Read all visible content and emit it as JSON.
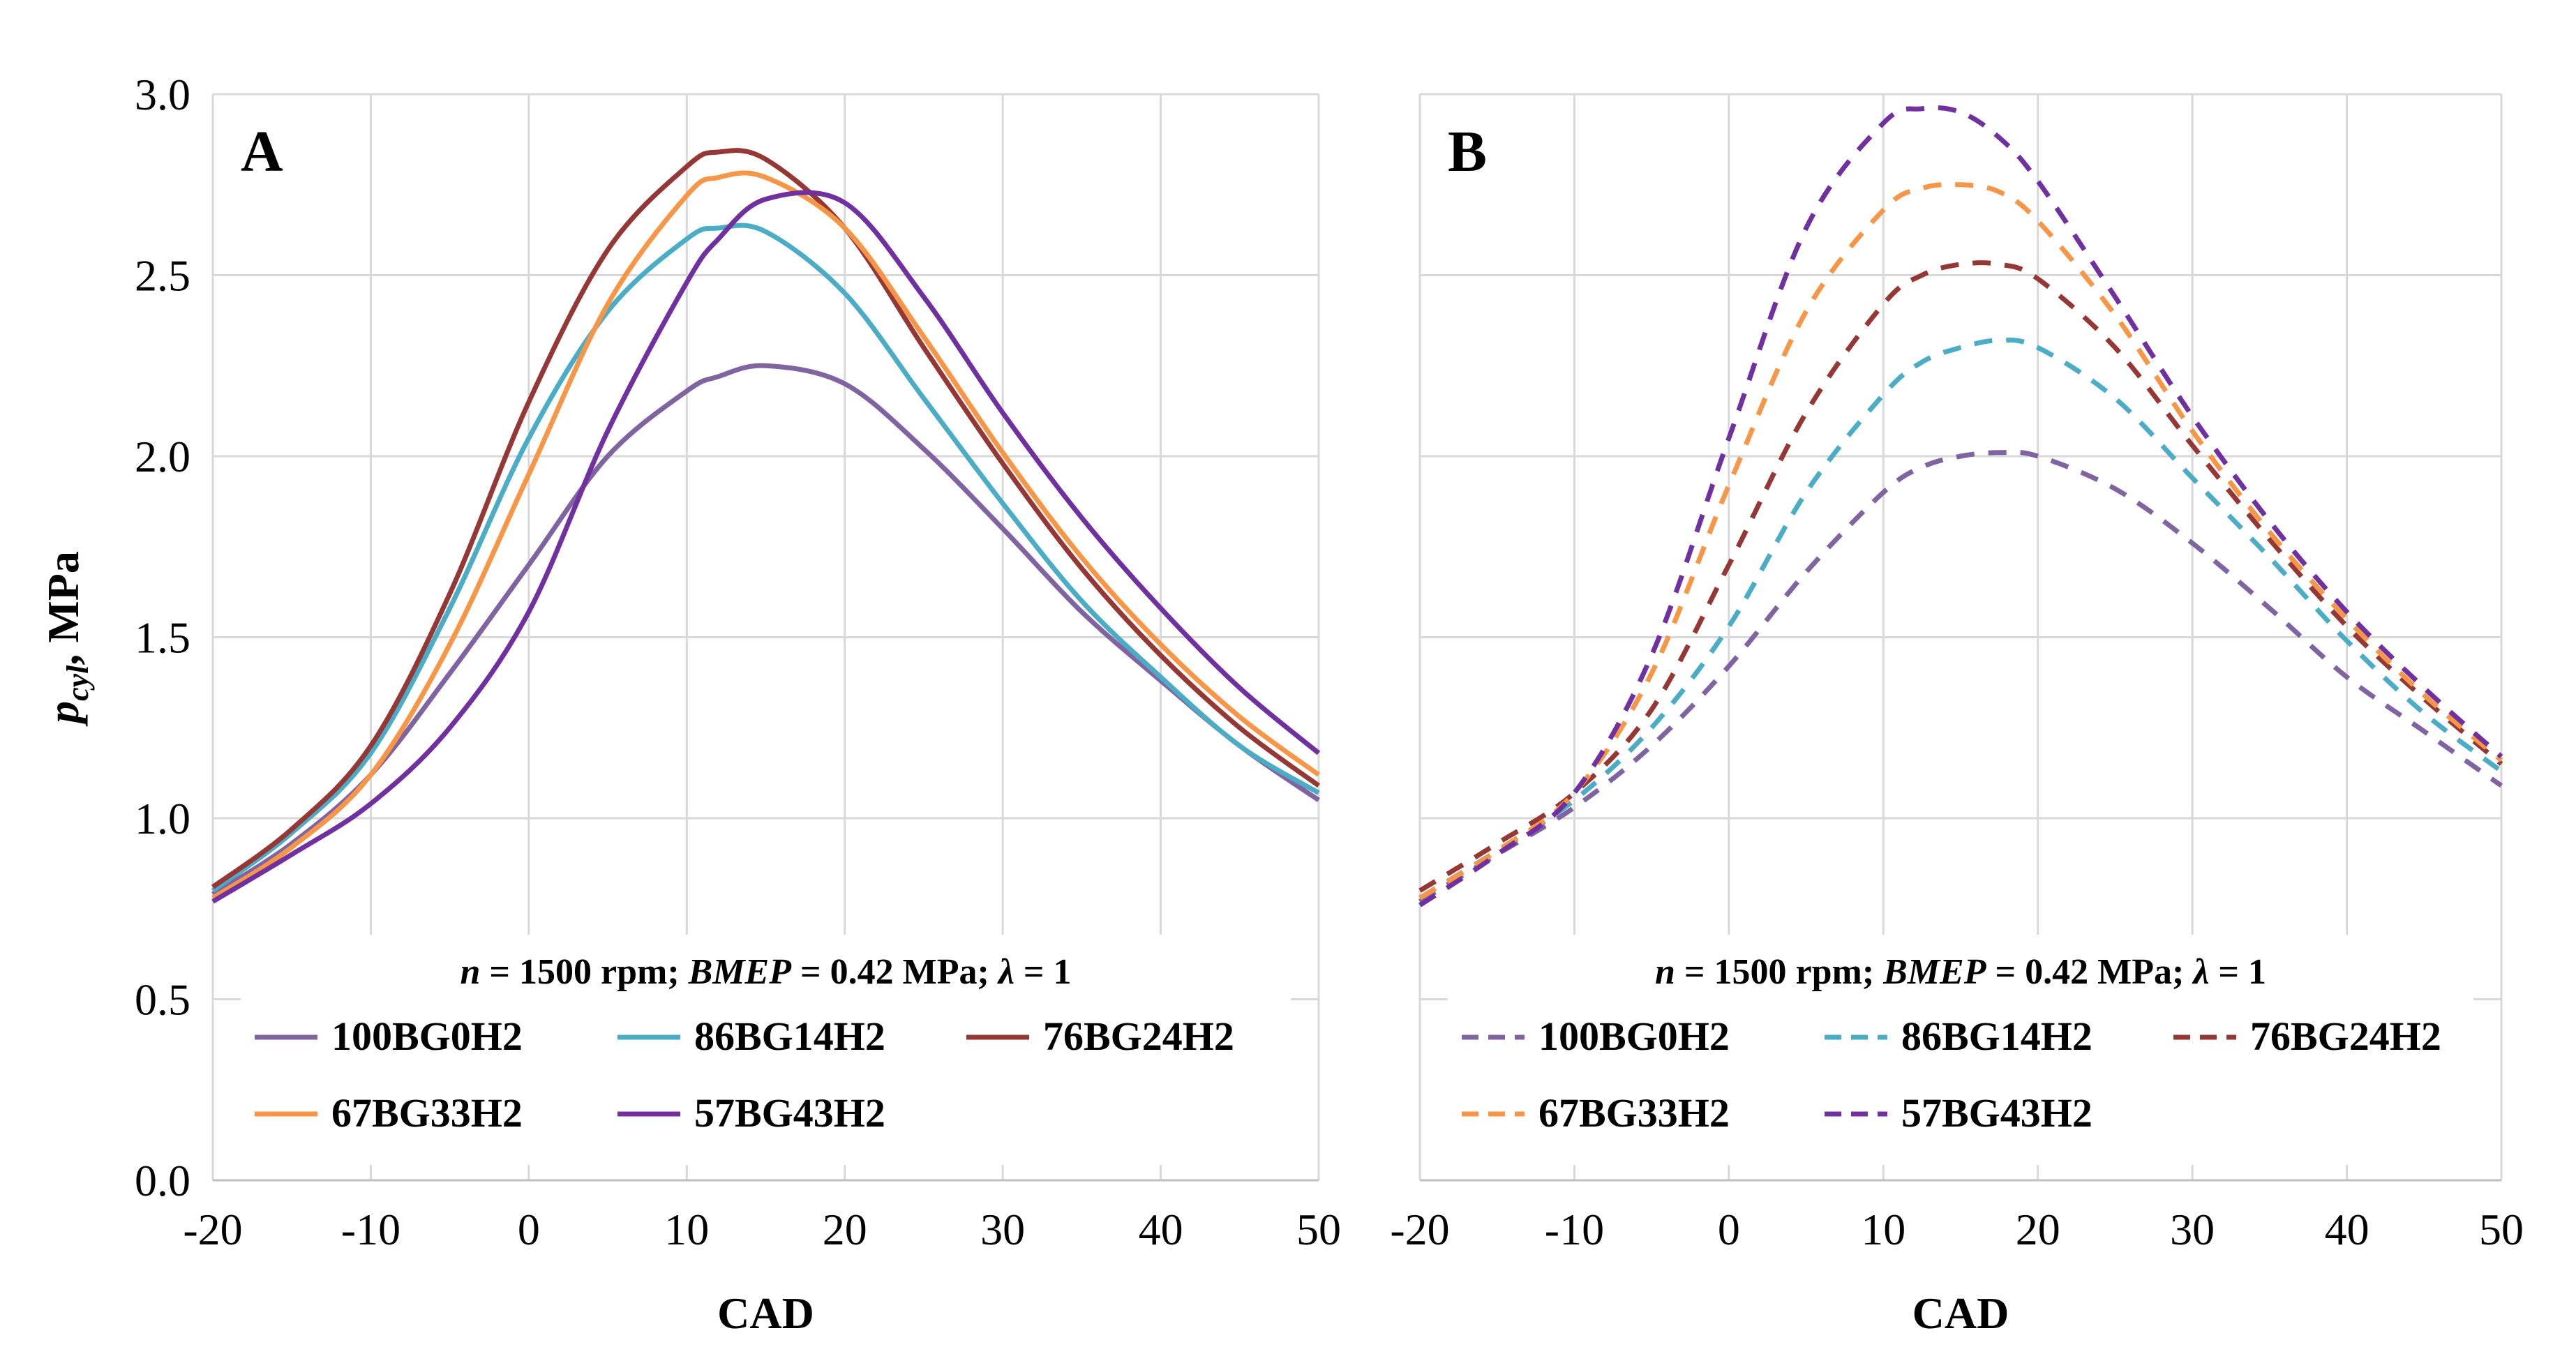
{
  "chart_data": [
    {
      "type": "line",
      "panel_label": "A",
      "xlabel": "CAD",
      "ylabel_main": "p",
      "ylabel_sub": "cyl",
      "ylabel_suffix": ", MPa",
      "xlim": [
        -20,
        50
      ],
      "ylim": [
        0.0,
        3.0
      ],
      "xticks": [
        "-20",
        "-10",
        "0",
        "10",
        "20",
        "30",
        "40",
        "50"
      ],
      "yticks": [
        "0.0",
        "0.5",
        "1.0",
        "1.5",
        "2.0",
        "2.5",
        "3.0"
      ],
      "grid": true,
      "line_style": "solid",
      "condition": {
        "n_label": "n",
        "n_text": " = 1500 rpm; ",
        "bmep_label": "BMEP",
        "bmep_text": " = 0.42 MPa; ",
        "lambda_label": "λ",
        "lambda_text": " = 1"
      },
      "x": [
        -20,
        -15,
        -10,
        -5,
        0,
        5,
        10,
        12,
        15,
        20,
        25,
        30,
        35,
        40,
        45,
        50
      ],
      "series": [
        {
          "name": "100BG0H2",
          "color": "#8064A2",
          "values": [
            0.79,
            0.93,
            1.12,
            1.4,
            1.7,
            2.0,
            2.18,
            2.22,
            2.25,
            2.2,
            2.02,
            1.8,
            1.57,
            1.38,
            1.2,
            1.05
          ]
        },
        {
          "name": "86BG14H2",
          "color": "#4BACC6",
          "values": [
            0.8,
            0.96,
            1.18,
            1.58,
            2.05,
            2.4,
            2.6,
            2.63,
            2.62,
            2.45,
            2.16,
            1.87,
            1.6,
            1.39,
            1.2,
            1.07
          ]
        },
        {
          "name": "76BG24H2",
          "color": "#953735",
          "values": [
            0.81,
            0.97,
            1.2,
            1.62,
            2.15,
            2.57,
            2.8,
            2.84,
            2.82,
            2.63,
            2.3,
            1.98,
            1.69,
            1.45,
            1.25,
            1.09
          ]
        },
        {
          "name": "67BG33H2",
          "color": "#F79646",
          "values": [
            0.78,
            0.92,
            1.12,
            1.48,
            1.95,
            2.42,
            2.72,
            2.77,
            2.77,
            2.63,
            2.33,
            2.01,
            1.72,
            1.48,
            1.28,
            1.12
          ]
        },
        {
          "name": "57BG43H2",
          "color": "#7030A0",
          "values": [
            0.77,
            0.9,
            1.04,
            1.25,
            1.57,
            2.07,
            2.48,
            2.6,
            2.71,
            2.7,
            2.44,
            2.12,
            1.83,
            1.58,
            1.36,
            1.18
          ]
        }
      ],
      "legend": [
        [
          "100BG0H2",
          "86BG14H2",
          "76BG24H2"
        ],
        [
          "67BG33H2",
          "57BG43H2"
        ]
      ]
    },
    {
      "type": "line",
      "panel_label": "B",
      "xlabel": "CAD",
      "xlim": [
        -20,
        50
      ],
      "ylim": [
        0.0,
        3.0
      ],
      "xticks": [
        "-20",
        "-10",
        "0",
        "10",
        "20",
        "30",
        "40",
        "50"
      ],
      "grid": true,
      "line_style": "dashed",
      "condition": {
        "n_label": "n",
        "n_text": " = 1500 rpm; ",
        "bmep_label": "BMEP",
        "bmep_text": " = 0.42 MPa; ",
        "lambda_label": "λ",
        "lambda_text": " = 1"
      },
      "x": [
        -20,
        -15,
        -10,
        -5,
        0,
        5,
        10,
        12.5,
        15,
        17.5,
        20,
        25,
        30,
        35,
        40,
        45,
        50
      ],
      "series": [
        {
          "name": "100BG0H2",
          "color": "#8064A2",
          "values": [
            0.77,
            0.9,
            1.03,
            1.2,
            1.42,
            1.68,
            1.9,
            1.97,
            2.0,
            2.01,
            2.0,
            1.91,
            1.76,
            1.58,
            1.39,
            1.24,
            1.09
          ]
        },
        {
          "name": "86BG14H2",
          "color": "#4BACC6",
          "values": [
            0.78,
            0.91,
            1.05,
            1.25,
            1.53,
            1.9,
            2.17,
            2.26,
            2.3,
            2.32,
            2.3,
            2.16,
            1.94,
            1.72,
            1.49,
            1.29,
            1.13
          ]
        },
        {
          "name": "76BG24H2",
          "color": "#953735",
          "values": [
            0.8,
            0.93,
            1.07,
            1.3,
            1.7,
            2.12,
            2.42,
            2.5,
            2.53,
            2.53,
            2.49,
            2.3,
            2.03,
            1.77,
            1.53,
            1.33,
            1.15
          ]
        },
        {
          "name": "67BG33H2",
          "color": "#F79646",
          "values": [
            0.78,
            0.91,
            1.07,
            1.4,
            1.92,
            2.4,
            2.68,
            2.74,
            2.75,
            2.73,
            2.65,
            2.39,
            2.07,
            1.79,
            1.55,
            1.34,
            1.16
          ]
        },
        {
          "name": "57BG43H2",
          "color": "#7030A0",
          "values": [
            0.76,
            0.9,
            1.07,
            1.45,
            2.05,
            2.63,
            2.92,
            2.96,
            2.95,
            2.88,
            2.76,
            2.44,
            2.11,
            1.82,
            1.57,
            1.36,
            1.17
          ]
        }
      ],
      "legend": [
        [
          "100BG0H2",
          "86BG14H2",
          "76BG24H2"
        ],
        [
          "67BG33H2",
          "57BG43H2"
        ]
      ]
    }
  ]
}
